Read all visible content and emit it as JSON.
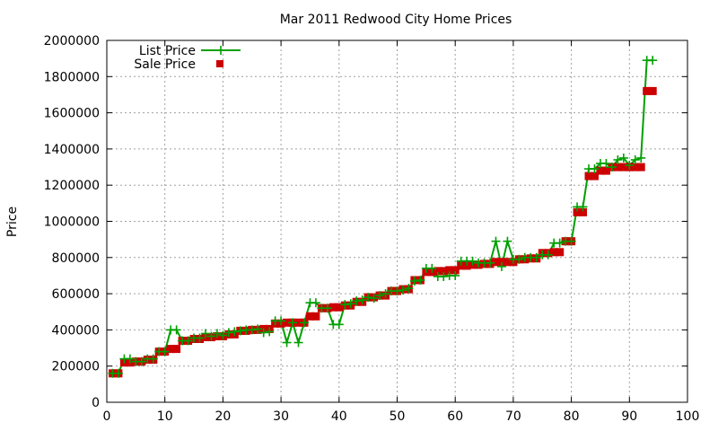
{
  "chart_data": {
    "type": "line",
    "title": "Mar 2011 Redwood City Home Prices",
    "xlabel": "",
    "ylabel": "Price",
    "xlim": [
      0,
      100
    ],
    "ylim": [
      0,
      2000000
    ],
    "x_ticks": [
      "0",
      "10",
      "20",
      "30",
      "40",
      "50",
      "60",
      "70",
      "80",
      "90",
      "100"
    ],
    "y_ticks": [
      "0",
      "200000",
      "400000",
      "600000",
      "800000",
      "1000000",
      "1200000",
      "1400000",
      "1600000",
      "1800000",
      "2000000"
    ],
    "grid": true,
    "legend_position": "top-left",
    "series": [
      {
        "name": "List Price",
        "color": "#00a000",
        "marker": "plus",
        "points": [
          [
            1,
            160000
          ],
          [
            2,
            160000
          ],
          [
            3,
            240000
          ],
          [
            4,
            240000
          ],
          [
            5,
            225000
          ],
          [
            6,
            225000
          ],
          [
            7,
            240000
          ],
          [
            8,
            240000
          ],
          [
            9,
            280000
          ],
          [
            10,
            280000
          ],
          [
            11,
            400000
          ],
          [
            12,
            400000
          ],
          [
            13,
            340000
          ],
          [
            14,
            340000
          ],
          [
            15,
            355000
          ],
          [
            16,
            355000
          ],
          [
            17,
            380000
          ],
          [
            18,
            365000
          ],
          [
            19,
            380000
          ],
          [
            20,
            370000
          ],
          [
            21,
            385000
          ],
          [
            22,
            390000
          ],
          [
            23,
            395000
          ],
          [
            24,
            400000
          ],
          [
            25,
            400000
          ],
          [
            26,
            405000
          ],
          [
            27,
            385000
          ],
          [
            28,
            390000
          ],
          [
            29,
            450000
          ],
          [
            30,
            450000
          ],
          [
            31,
            330000
          ],
          [
            32,
            440000
          ],
          [
            33,
            330000
          ],
          [
            34,
            440000
          ],
          [
            35,
            550000
          ],
          [
            36,
            550000
          ],
          [
            37,
            520000
          ],
          [
            38,
            520000
          ],
          [
            39,
            430000
          ],
          [
            40,
            430000
          ],
          [
            41,
            540000
          ],
          [
            42,
            545000
          ],
          [
            43,
            560000
          ],
          [
            44,
            565000
          ],
          [
            45,
            580000
          ],
          [
            46,
            575000
          ],
          [
            47,
            590000
          ],
          [
            48,
            600000
          ],
          [
            49,
            615000
          ],
          [
            50,
            615000
          ],
          [
            51,
            620000
          ],
          [
            52,
            630000
          ],
          [
            53,
            670000
          ],
          [
            54,
            675000
          ],
          [
            55,
            740000
          ],
          [
            56,
            740000
          ],
          [
            57,
            695000
          ],
          [
            58,
            695000
          ],
          [
            59,
            700000
          ],
          [
            60,
            700000
          ],
          [
            61,
            780000
          ],
          [
            62,
            780000
          ],
          [
            63,
            780000
          ],
          [
            64,
            770000
          ],
          [
            65,
            770000
          ],
          [
            66,
            770000
          ],
          [
            67,
            890000
          ],
          [
            68,
            750000
          ],
          [
            69,
            890000
          ],
          [
            70,
            790000
          ],
          [
            71,
            790000
          ],
          [
            72,
            800000
          ],
          [
            73,
            800000
          ],
          [
            74,
            800000
          ],
          [
            75,
            815000
          ],
          [
            76,
            815000
          ],
          [
            77,
            880000
          ],
          [
            78,
            880000
          ],
          [
            79,
            890000
          ],
          [
            80,
            890000
          ],
          [
            81,
            1080000
          ],
          [
            82,
            1080000
          ],
          [
            83,
            1290000
          ],
          [
            84,
            1290000
          ],
          [
            85,
            1320000
          ],
          [
            86,
            1320000
          ],
          [
            87,
            1300000
          ],
          [
            88,
            1340000
          ],
          [
            89,
            1350000
          ],
          [
            90,
            1310000
          ],
          [
            91,
            1340000
          ],
          [
            92,
            1350000
          ],
          [
            93,
            1890000
          ],
          [
            94,
            1890000
          ]
        ]
      },
      {
        "name": "Sale Price",
        "color": "#cc0000",
        "marker": "square",
        "points": [
          [
            1,
            160000
          ],
          [
            2,
            160000
          ],
          [
            3,
            220000
          ],
          [
            4,
            220000
          ],
          [
            5,
            225000
          ],
          [
            6,
            225000
          ],
          [
            7,
            235000
          ],
          [
            8,
            235000
          ],
          [
            9,
            280000
          ],
          [
            10,
            280000
          ],
          [
            11,
            295000
          ],
          [
            12,
            295000
          ],
          [
            13,
            340000
          ],
          [
            14,
            340000
          ],
          [
            15,
            350000
          ],
          [
            16,
            350000
          ],
          [
            17,
            360000
          ],
          [
            18,
            360000
          ],
          [
            19,
            365000
          ],
          [
            20,
            365000
          ],
          [
            21,
            375000
          ],
          [
            22,
            375000
          ],
          [
            23,
            395000
          ],
          [
            24,
            395000
          ],
          [
            25,
            400000
          ],
          [
            26,
            400000
          ],
          [
            27,
            405000
          ],
          [
            28,
            405000
          ],
          [
            29,
            435000
          ],
          [
            30,
            435000
          ],
          [
            31,
            440000
          ],
          [
            32,
            440000
          ],
          [
            33,
            440000
          ],
          [
            34,
            440000
          ],
          [
            35,
            475000
          ],
          [
            36,
            475000
          ],
          [
            37,
            520000
          ],
          [
            38,
            520000
          ],
          [
            39,
            525000
          ],
          [
            40,
            525000
          ],
          [
            41,
            535000
          ],
          [
            42,
            535000
          ],
          [
            43,
            555000
          ],
          [
            44,
            555000
          ],
          [
            45,
            580000
          ],
          [
            46,
            580000
          ],
          [
            47,
            590000
          ],
          [
            48,
            590000
          ],
          [
            49,
            615000
          ],
          [
            50,
            615000
          ],
          [
            51,
            625000
          ],
          [
            52,
            625000
          ],
          [
            53,
            675000
          ],
          [
            54,
            675000
          ],
          [
            55,
            720000
          ],
          [
            56,
            720000
          ],
          [
            57,
            725000
          ],
          [
            58,
            725000
          ],
          [
            59,
            730000
          ],
          [
            60,
            730000
          ],
          [
            61,
            755000
          ],
          [
            62,
            755000
          ],
          [
            63,
            760000
          ],
          [
            64,
            760000
          ],
          [
            65,
            765000
          ],
          [
            66,
            765000
          ],
          [
            67,
            775000
          ],
          [
            68,
            775000
          ],
          [
            69,
            775000
          ],
          [
            70,
            775000
          ],
          [
            71,
            790000
          ],
          [
            72,
            790000
          ],
          [
            73,
            795000
          ],
          [
            74,
            795000
          ],
          [
            75,
            825000
          ],
          [
            76,
            825000
          ],
          [
            77,
            830000
          ],
          [
            78,
            830000
          ],
          [
            79,
            890000
          ],
          [
            80,
            890000
          ],
          [
            81,
            1050000
          ],
          [
            82,
            1050000
          ],
          [
            83,
            1250000
          ],
          [
            84,
            1250000
          ],
          [
            85,
            1280000
          ],
          [
            86,
            1280000
          ],
          [
            87,
            1300000
          ],
          [
            88,
            1300000
          ],
          [
            89,
            1300000
          ],
          [
            90,
            1300000
          ],
          [
            91,
            1300000
          ],
          [
            92,
            1300000
          ],
          [
            93,
            1720000
          ],
          [
            94,
            1720000
          ]
        ]
      }
    ]
  }
}
